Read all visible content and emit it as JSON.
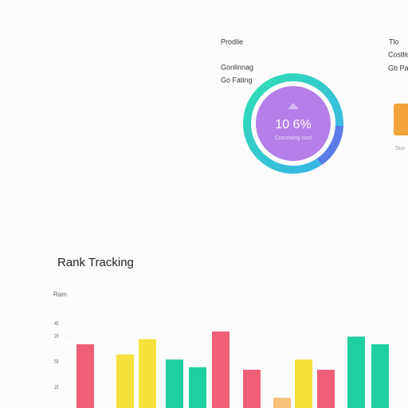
{
  "profile": {
    "title": "Prodile",
    "lines": [
      "Gonlinnag",
      "Go Fating"
    ]
  },
  "gauge": {
    "label": "10 6%",
    "caption": "Cocntaing soct"
  },
  "side_panel": {
    "title": "Tlo",
    "lines": [
      "Costlic",
      "Gb Pa"
    ],
    "footer": "Sun"
  },
  "chart_data": {
    "type": "bar",
    "title": "Rank Tracking",
    "y_label": "Ram",
    "categories": [
      null,
      null,
      null,
      null,
      null,
      null,
      null,
      null,
      null,
      null,
      null,
      null
    ],
    "values": [
      27,
      23,
      29,
      21,
      18,
      32,
      17,
      6,
      21,
      17,
      30,
      27
    ],
    "colors": [
      "#ef5f78",
      "#f4e23a",
      "#f4e23a",
      "#1fcf9f",
      "#1fcf9f",
      "#ef5f78",
      "#ef5f78",
      "#f7c27a",
      "#f4e23a",
      "#ef5f78",
      "#1fcf9f",
      "#1fcf9f"
    ],
    "ylim": [
      2,
      40
    ],
    "yticks": [
      {
        "value": 35,
        "label": "4l"
      },
      {
        "value": 30,
        "label": "2l"
      },
      {
        "value": 20,
        "label": "5l"
      },
      {
        "value": 10,
        "label": "2l"
      }
    ]
  }
}
